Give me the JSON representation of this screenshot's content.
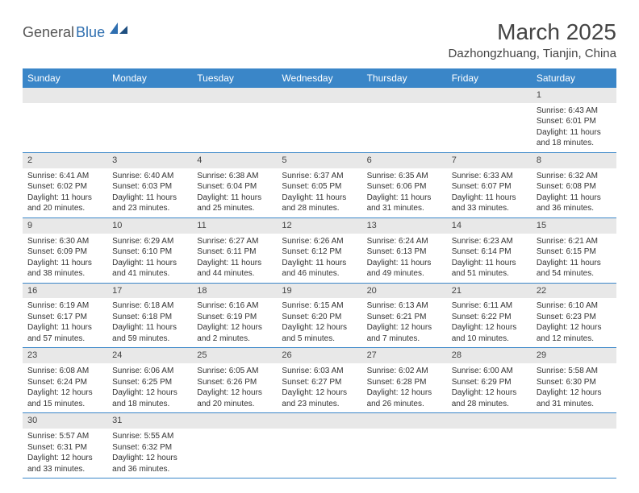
{
  "logo": {
    "text_a": "General",
    "text_b": "Blue"
  },
  "title": "March 2025",
  "location": "Dazhongzhuang, Tianjin, China",
  "colors": {
    "header_bg": "#3a86c8",
    "header_fg": "#ffffff",
    "daynum_bg": "#e8e8e8",
    "rule": "#3a86c8",
    "logo_gray": "#555555",
    "logo_blue": "#2f6fb0",
    "text": "#333333"
  },
  "weekdays": [
    "Sunday",
    "Monday",
    "Tuesday",
    "Wednesday",
    "Thursday",
    "Friday",
    "Saturday"
  ],
  "weeks": [
    {
      "nums": [
        "",
        "",
        "",
        "",
        "",
        "",
        "1"
      ],
      "cells": [
        null,
        null,
        null,
        null,
        null,
        null,
        {
          "sr": "Sunrise: 6:43 AM",
          "ss": "Sunset: 6:01 PM",
          "dl1": "Daylight: 11 hours",
          "dl2": "and 18 minutes."
        }
      ]
    },
    {
      "nums": [
        "2",
        "3",
        "4",
        "5",
        "6",
        "7",
        "8"
      ],
      "cells": [
        {
          "sr": "Sunrise: 6:41 AM",
          "ss": "Sunset: 6:02 PM",
          "dl1": "Daylight: 11 hours",
          "dl2": "and 20 minutes."
        },
        {
          "sr": "Sunrise: 6:40 AM",
          "ss": "Sunset: 6:03 PM",
          "dl1": "Daylight: 11 hours",
          "dl2": "and 23 minutes."
        },
        {
          "sr": "Sunrise: 6:38 AM",
          "ss": "Sunset: 6:04 PM",
          "dl1": "Daylight: 11 hours",
          "dl2": "and 25 minutes."
        },
        {
          "sr": "Sunrise: 6:37 AM",
          "ss": "Sunset: 6:05 PM",
          "dl1": "Daylight: 11 hours",
          "dl2": "and 28 minutes."
        },
        {
          "sr": "Sunrise: 6:35 AM",
          "ss": "Sunset: 6:06 PM",
          "dl1": "Daylight: 11 hours",
          "dl2": "and 31 minutes."
        },
        {
          "sr": "Sunrise: 6:33 AM",
          "ss": "Sunset: 6:07 PM",
          "dl1": "Daylight: 11 hours",
          "dl2": "and 33 minutes."
        },
        {
          "sr": "Sunrise: 6:32 AM",
          "ss": "Sunset: 6:08 PM",
          "dl1": "Daylight: 11 hours",
          "dl2": "and 36 minutes."
        }
      ]
    },
    {
      "nums": [
        "9",
        "10",
        "11",
        "12",
        "13",
        "14",
        "15"
      ],
      "cells": [
        {
          "sr": "Sunrise: 6:30 AM",
          "ss": "Sunset: 6:09 PM",
          "dl1": "Daylight: 11 hours",
          "dl2": "and 38 minutes."
        },
        {
          "sr": "Sunrise: 6:29 AM",
          "ss": "Sunset: 6:10 PM",
          "dl1": "Daylight: 11 hours",
          "dl2": "and 41 minutes."
        },
        {
          "sr": "Sunrise: 6:27 AM",
          "ss": "Sunset: 6:11 PM",
          "dl1": "Daylight: 11 hours",
          "dl2": "and 44 minutes."
        },
        {
          "sr": "Sunrise: 6:26 AM",
          "ss": "Sunset: 6:12 PM",
          "dl1": "Daylight: 11 hours",
          "dl2": "and 46 minutes."
        },
        {
          "sr": "Sunrise: 6:24 AM",
          "ss": "Sunset: 6:13 PM",
          "dl1": "Daylight: 11 hours",
          "dl2": "and 49 minutes."
        },
        {
          "sr": "Sunrise: 6:23 AM",
          "ss": "Sunset: 6:14 PM",
          "dl1": "Daylight: 11 hours",
          "dl2": "and 51 minutes."
        },
        {
          "sr": "Sunrise: 6:21 AM",
          "ss": "Sunset: 6:15 PM",
          "dl1": "Daylight: 11 hours",
          "dl2": "and 54 minutes."
        }
      ]
    },
    {
      "nums": [
        "16",
        "17",
        "18",
        "19",
        "20",
        "21",
        "22"
      ],
      "cells": [
        {
          "sr": "Sunrise: 6:19 AM",
          "ss": "Sunset: 6:17 PM",
          "dl1": "Daylight: 11 hours",
          "dl2": "and 57 minutes."
        },
        {
          "sr": "Sunrise: 6:18 AM",
          "ss": "Sunset: 6:18 PM",
          "dl1": "Daylight: 11 hours",
          "dl2": "and 59 minutes."
        },
        {
          "sr": "Sunrise: 6:16 AM",
          "ss": "Sunset: 6:19 PM",
          "dl1": "Daylight: 12 hours",
          "dl2": "and 2 minutes."
        },
        {
          "sr": "Sunrise: 6:15 AM",
          "ss": "Sunset: 6:20 PM",
          "dl1": "Daylight: 12 hours",
          "dl2": "and 5 minutes."
        },
        {
          "sr": "Sunrise: 6:13 AM",
          "ss": "Sunset: 6:21 PM",
          "dl1": "Daylight: 12 hours",
          "dl2": "and 7 minutes."
        },
        {
          "sr": "Sunrise: 6:11 AM",
          "ss": "Sunset: 6:22 PM",
          "dl1": "Daylight: 12 hours",
          "dl2": "and 10 minutes."
        },
        {
          "sr": "Sunrise: 6:10 AM",
          "ss": "Sunset: 6:23 PM",
          "dl1": "Daylight: 12 hours",
          "dl2": "and 12 minutes."
        }
      ]
    },
    {
      "nums": [
        "23",
        "24",
        "25",
        "26",
        "27",
        "28",
        "29"
      ],
      "cells": [
        {
          "sr": "Sunrise: 6:08 AM",
          "ss": "Sunset: 6:24 PM",
          "dl1": "Daylight: 12 hours",
          "dl2": "and 15 minutes."
        },
        {
          "sr": "Sunrise: 6:06 AM",
          "ss": "Sunset: 6:25 PM",
          "dl1": "Daylight: 12 hours",
          "dl2": "and 18 minutes."
        },
        {
          "sr": "Sunrise: 6:05 AM",
          "ss": "Sunset: 6:26 PM",
          "dl1": "Daylight: 12 hours",
          "dl2": "and 20 minutes."
        },
        {
          "sr": "Sunrise: 6:03 AM",
          "ss": "Sunset: 6:27 PM",
          "dl1": "Daylight: 12 hours",
          "dl2": "and 23 minutes."
        },
        {
          "sr": "Sunrise: 6:02 AM",
          "ss": "Sunset: 6:28 PM",
          "dl1": "Daylight: 12 hours",
          "dl2": "and 26 minutes."
        },
        {
          "sr": "Sunrise: 6:00 AM",
          "ss": "Sunset: 6:29 PM",
          "dl1": "Daylight: 12 hours",
          "dl2": "and 28 minutes."
        },
        {
          "sr": "Sunrise: 5:58 AM",
          "ss": "Sunset: 6:30 PM",
          "dl1": "Daylight: 12 hours",
          "dl2": "and 31 minutes."
        }
      ]
    },
    {
      "nums": [
        "30",
        "31",
        "",
        "",
        "",
        "",
        ""
      ],
      "cells": [
        {
          "sr": "Sunrise: 5:57 AM",
          "ss": "Sunset: 6:31 PM",
          "dl1": "Daylight: 12 hours",
          "dl2": "and 33 minutes."
        },
        {
          "sr": "Sunrise: 5:55 AM",
          "ss": "Sunset: 6:32 PM",
          "dl1": "Daylight: 12 hours",
          "dl2": "and 36 minutes."
        },
        null,
        null,
        null,
        null,
        null
      ]
    }
  ]
}
